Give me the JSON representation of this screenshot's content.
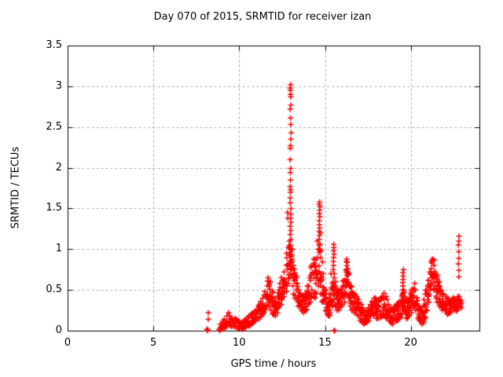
{
  "figure": {
    "background": "#ffffff",
    "frame_color": "#000000"
  },
  "chart_data": {
    "type": "scatter",
    "title": "Day 070 of 2015, SRMTID for receiver izan",
    "xlabel": "GPS time / hours",
    "ylabel": "SRMTID / TECUs",
    "xlim": [
      0,
      24
    ],
    "ylim": [
      0,
      3.5
    ],
    "x_ticks": {
      "values": [
        0,
        5,
        10,
        15,
        20
      ],
      "labels": [
        "0",
        "5",
        "10",
        "15",
        "20"
      ]
    },
    "y_ticks": {
      "values": [
        0,
        0.5,
        1,
        1.5,
        2,
        2.5,
        3,
        3.5
      ],
      "labels": [
        "0",
        "0.5",
        "1",
        "1.5",
        "2",
        "2.5",
        "3",
        "3.5"
      ]
    },
    "grid": {
      "show": true,
      "style": "dashed",
      "color": "#aaaaaa"
    },
    "marker": {
      "shape": "plus",
      "color": "#ff0000",
      "size": 7
    },
    "legend": {
      "show": false
    },
    "series": [
      {
        "name": "SRMTID",
        "band": [
          [
            8.95,
            0.02,
            0.08,
            4
          ],
          [
            9.0,
            0.02,
            0.1,
            5
          ],
          [
            9.1,
            0.03,
            0.12,
            5
          ],
          [
            9.2,
            0.04,
            0.14,
            5
          ],
          [
            9.3,
            0.06,
            0.18,
            5
          ],
          [
            9.4,
            0.08,
            0.22,
            5
          ],
          [
            9.5,
            0.06,
            0.18,
            5
          ],
          [
            9.6,
            0.05,
            0.16,
            5
          ],
          [
            9.7,
            0.06,
            0.15,
            5
          ],
          [
            9.8,
            0.05,
            0.14,
            5
          ],
          [
            9.9,
            0.04,
            0.13,
            5
          ],
          [
            10.0,
            0.02,
            0.12,
            5
          ],
          [
            10.1,
            0.02,
            0.1,
            5
          ],
          [
            10.2,
            0.02,
            0.1,
            5
          ],
          [
            10.3,
            0.03,
            0.12,
            5
          ],
          [
            10.4,
            0.05,
            0.14,
            5
          ],
          [
            10.5,
            0.06,
            0.16,
            6
          ],
          [
            10.6,
            0.06,
            0.18,
            6
          ],
          [
            10.7,
            0.08,
            0.2,
            6
          ],
          [
            10.8,
            0.09,
            0.22,
            6
          ],
          [
            10.9,
            0.1,
            0.24,
            6
          ],
          [
            11.0,
            0.12,
            0.26,
            6
          ],
          [
            11.1,
            0.14,
            0.3,
            6
          ],
          [
            11.2,
            0.15,
            0.33,
            6
          ],
          [
            11.3,
            0.17,
            0.36,
            6
          ],
          [
            11.4,
            0.2,
            0.4,
            6
          ],
          [
            11.5,
            0.25,
            0.48,
            8
          ],
          [
            11.6,
            0.3,
            0.55,
            8
          ],
          [
            11.7,
            0.35,
            0.65,
            8
          ],
          [
            11.8,
            0.3,
            0.6,
            8
          ],
          [
            11.9,
            0.25,
            0.48,
            8
          ],
          [
            12.0,
            0.2,
            0.4,
            8
          ],
          [
            12.1,
            0.18,
            0.35,
            8
          ],
          [
            12.2,
            0.22,
            0.42,
            8
          ],
          [
            12.3,
            0.28,
            0.5,
            8
          ],
          [
            12.4,
            0.32,
            0.58,
            8
          ],
          [
            12.5,
            0.38,
            0.65,
            8
          ],
          [
            12.6,
            0.42,
            0.72,
            8
          ],
          [
            12.7,
            0.48,
            0.8,
            8
          ],
          [
            12.8,
            0.55,
            0.95,
            9
          ],
          [
            12.9,
            0.65,
            1.1,
            9
          ],
          [
            13.0,
            0.75,
            1.05,
            9
          ],
          [
            13.1,
            0.55,
            1.0,
            9
          ],
          [
            13.2,
            0.45,
            0.8,
            9
          ],
          [
            13.3,
            0.4,
            0.68,
            8
          ],
          [
            13.4,
            0.35,
            0.58,
            8
          ],
          [
            13.5,
            0.3,
            0.5,
            8
          ],
          [
            13.6,
            0.26,
            0.45,
            8
          ],
          [
            13.7,
            0.24,
            0.42,
            8
          ],
          [
            13.8,
            0.22,
            0.4,
            8
          ],
          [
            13.9,
            0.25,
            0.45,
            8
          ],
          [
            14.0,
            0.3,
            0.55,
            8
          ],
          [
            14.1,
            0.35,
            0.65,
            8
          ],
          [
            14.2,
            0.4,
            0.8,
            8
          ],
          [
            14.3,
            0.45,
            0.88,
            8
          ],
          [
            14.4,
            0.4,
            0.8,
            8
          ],
          [
            14.5,
            0.45,
            0.9,
            8
          ],
          [
            14.6,
            0.55,
            1.1,
            8
          ],
          [
            14.7,
            0.6,
            1.2,
            8
          ],
          [
            14.8,
            0.45,
            0.9,
            8
          ],
          [
            14.9,
            0.35,
            0.7,
            8
          ],
          [
            15.0,
            0.25,
            0.5,
            8
          ],
          [
            15.1,
            0.2,
            0.4,
            8
          ],
          [
            15.2,
            0.18,
            0.35,
            8
          ],
          [
            15.3,
            0.2,
            0.45,
            8
          ],
          [
            15.4,
            0.3,
            0.7,
            8
          ],
          [
            15.5,
            0.35,
            0.6,
            8
          ],
          [
            15.6,
            0.3,
            0.6,
            8
          ],
          [
            15.7,
            0.25,
            0.5,
            8
          ],
          [
            15.8,
            0.25,
            0.45,
            8
          ],
          [
            15.9,
            0.28,
            0.5,
            8
          ],
          [
            16.0,
            0.3,
            0.55,
            8
          ],
          [
            16.1,
            0.35,
            0.62,
            8
          ],
          [
            16.2,
            0.45,
            0.75,
            8
          ],
          [
            16.3,
            0.55,
            0.85,
            8
          ],
          [
            16.4,
            0.4,
            0.7,
            8
          ],
          [
            16.5,
            0.3,
            0.55,
            8
          ],
          [
            16.6,
            0.25,
            0.48,
            7
          ],
          [
            16.7,
            0.22,
            0.45,
            7
          ],
          [
            16.8,
            0.2,
            0.42,
            7
          ],
          [
            16.9,
            0.18,
            0.38,
            7
          ],
          [
            17.0,
            0.15,
            0.35,
            7
          ],
          [
            17.1,
            0.12,
            0.32,
            7
          ],
          [
            17.2,
            0.1,
            0.28,
            7
          ],
          [
            17.3,
            0.08,
            0.25,
            7
          ],
          [
            17.4,
            0.1,
            0.25,
            7
          ],
          [
            17.5,
            0.12,
            0.28,
            7
          ],
          [
            17.6,
            0.15,
            0.32,
            7
          ],
          [
            17.7,
            0.18,
            0.36,
            7
          ],
          [
            17.8,
            0.2,
            0.4,
            7
          ],
          [
            17.9,
            0.18,
            0.4,
            7
          ],
          [
            18.0,
            0.15,
            0.38,
            7
          ],
          [
            18.1,
            0.15,
            0.36,
            7
          ],
          [
            18.2,
            0.16,
            0.38,
            7
          ],
          [
            18.3,
            0.18,
            0.42,
            7
          ],
          [
            18.4,
            0.2,
            0.46,
            7
          ],
          [
            18.5,
            0.18,
            0.42,
            7
          ],
          [
            18.6,
            0.15,
            0.38,
            7
          ],
          [
            18.7,
            0.12,
            0.32,
            7
          ],
          [
            18.8,
            0.1,
            0.28,
            7
          ],
          [
            18.9,
            0.08,
            0.26,
            7
          ],
          [
            19.0,
            0.1,
            0.28,
            7
          ],
          [
            19.1,
            0.12,
            0.3,
            7
          ],
          [
            19.2,
            0.12,
            0.32,
            7
          ],
          [
            19.3,
            0.14,
            0.34,
            7
          ],
          [
            19.4,
            0.16,
            0.36,
            7
          ],
          [
            19.5,
            0.2,
            0.45,
            8
          ],
          [
            19.6,
            0.25,
            0.5,
            8
          ],
          [
            19.7,
            0.2,
            0.42,
            8
          ],
          [
            19.8,
            0.15,
            0.35,
            8
          ],
          [
            19.9,
            0.18,
            0.38,
            8
          ],
          [
            20.0,
            0.22,
            0.45,
            8
          ],
          [
            20.1,
            0.28,
            0.52,
            8
          ],
          [
            20.2,
            0.3,
            0.58,
            8
          ],
          [
            20.3,
            0.25,
            0.5,
            8
          ],
          [
            20.4,
            0.18,
            0.4,
            8
          ],
          [
            20.5,
            0.12,
            0.3,
            8
          ],
          [
            20.6,
            0.08,
            0.25,
            8
          ],
          [
            20.7,
            0.1,
            0.28,
            8
          ],
          [
            20.8,
            0.15,
            0.38,
            8
          ],
          [
            20.9,
            0.25,
            0.5,
            8
          ],
          [
            21.0,
            0.35,
            0.62,
            8
          ],
          [
            21.1,
            0.45,
            0.72,
            8
          ],
          [
            21.2,
            0.55,
            0.85,
            8
          ],
          [
            21.3,
            0.6,
            0.88,
            8
          ],
          [
            21.4,
            0.5,
            0.8,
            8
          ],
          [
            21.5,
            0.4,
            0.68,
            8
          ],
          [
            21.6,
            0.35,
            0.6,
            8
          ],
          [
            21.7,
            0.3,
            0.55,
            8
          ],
          [
            21.8,
            0.28,
            0.5,
            8
          ],
          [
            21.9,
            0.25,
            0.45,
            8
          ],
          [
            22.0,
            0.25,
            0.42,
            7
          ],
          [
            22.1,
            0.22,
            0.4,
            7
          ],
          [
            22.2,
            0.2,
            0.38,
            7
          ],
          [
            22.3,
            0.22,
            0.36,
            7
          ],
          [
            22.4,
            0.24,
            0.38,
            7
          ],
          [
            22.5,
            0.25,
            0.4,
            7
          ],
          [
            22.6,
            0.24,
            0.38,
            7
          ],
          [
            22.7,
            0.25,
            0.4,
            7
          ],
          [
            22.8,
            0.26,
            0.42,
            7
          ],
          [
            22.9,
            0.28,
            0.38,
            7
          ]
        ],
        "columns": [
          {
            "x": 13.0,
            "values": [
              3.02,
              2.98,
              2.95,
              2.9,
              2.87,
              2.77,
              2.72,
              2.61,
              2.53,
              2.43,
              2.35,
              2.27,
              2.24,
              2.1,
              1.99,
              1.94,
              1.85,
              1.77,
              1.73,
              1.7,
              1.63,
              1.57,
              1.5,
              1.43,
              1.38,
              1.33,
              1.28,
              1.23,
              1.18,
              1.12
            ]
          },
          {
            "x": 12.85,
            "values": [
              1.45,
              1.38
            ]
          },
          {
            "x": 14.68,
            "values": [
              1.58,
              1.55,
              1.52,
              1.48,
              1.44,
              1.4,
              1.35,
              1.3,
              1.26,
              1.22,
              1.17,
              1.12,
              1.06,
              1.0
            ]
          },
          {
            "x": 15.5,
            "values": [
              1.06,
              1.02,
              0.98,
              0.94,
              0.9,
              0.85,
              0.8,
              0.75,
              0.7,
              0.65
            ]
          },
          {
            "x": 16.3,
            "values": [
              0.88,
              0.84,
              0.8,
              0.76,
              0.72,
              0.68
            ]
          },
          {
            "x": 19.55,
            "values": [
              0.75,
              0.71,
              0.67,
              0.63,
              0.59,
              0.55,
              0.5,
              0.45,
              0.4,
              0.35
            ]
          },
          {
            "x": 22.78,
            "values": [
              1.16,
              1.1,
              1.05,
              0.97,
              0.89,
              0.82,
              0.74,
              0.66
            ]
          }
        ],
        "points": [
          [
            8.2,
            0.22
          ],
          [
            8.2,
            0.14
          ],
          [
            8.12,
            0.02
          ],
          [
            8.17,
            0.01
          ],
          [
            8.15,
            0.0
          ],
          [
            8.83,
            0.02
          ],
          [
            8.88,
            0.01
          ],
          [
            8.86,
            0.0
          ],
          [
            15.52,
            0.0
          ],
          [
            15.58,
            0.0
          ]
        ]
      }
    ]
  }
}
